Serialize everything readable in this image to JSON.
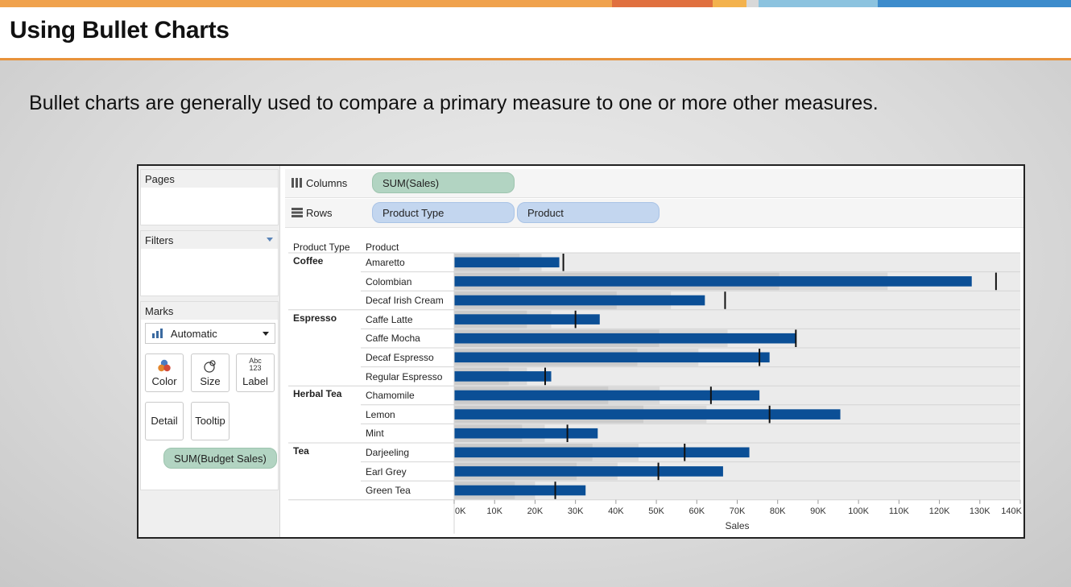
{
  "slide": {
    "title": "Using Bullet Charts",
    "subtitle": "Bullet charts are generally used to compare a primary measure to one or more other measures."
  },
  "colors": {
    "accent_orange": "#e8923a",
    "bar_blue": "#0b4f96",
    "pill_green": "#b2d4c2",
    "pill_blue": "#c3d6ef"
  },
  "left_pane": {
    "pages_label": "Pages",
    "filters_label": "Filters",
    "marks_label": "Marks",
    "mark_type": "Automatic",
    "buttons": {
      "color": "Color",
      "size": "Size",
      "label": "Label",
      "detail": "Detail",
      "tooltip": "Tooltip"
    },
    "label_icon_text": [
      "Abc",
      "123"
    ],
    "marks_pill": "SUM(Budget Sales)"
  },
  "shelves": {
    "columns_label": "Columns",
    "columns_pill": "SUM(Sales)",
    "rows_label": "Rows",
    "rows_pills": [
      "Product Type",
      "Product"
    ]
  },
  "chart_data": {
    "type": "bar",
    "subtype": "bullet",
    "header_product_type": "Product Type",
    "header_product": "Product",
    "xlabel": "Sales",
    "xlim": [
      0,
      140000
    ],
    "x_ticks": [
      0,
      10000,
      20000,
      30000,
      40000,
      50000,
      60000,
      70000,
      80000,
      90000,
      100000,
      110000,
      120000,
      130000,
      140000
    ],
    "x_tick_labels": [
      "0K",
      "10K",
      "20K",
      "30K",
      "40K",
      "50K",
      "60K",
      "70K",
      "80K",
      "90K",
      "100K",
      "110K",
      "120K",
      "130K",
      "140K"
    ],
    "groups": [
      {
        "name": "Coffee",
        "rows": [
          {
            "product": "Amaretto",
            "sales": 26000,
            "budget": 27000
          },
          {
            "product": "Colombian",
            "sales": 128000,
            "budget": 134000
          },
          {
            "product": "Decaf Irish Cream",
            "sales": 62000,
            "budget": 67000
          }
        ]
      },
      {
        "name": "Espresso",
        "rows": [
          {
            "product": "Caffe Latte",
            "sales": 36000,
            "budget": 30000
          },
          {
            "product": "Caffe Mocha",
            "sales": 84500,
            "budget": 84500
          },
          {
            "product": "Decaf Espresso",
            "sales": 78000,
            "budget": 75500
          },
          {
            "product": "Regular Espresso",
            "sales": 24000,
            "budget": 22500
          }
        ]
      },
      {
        "name": "Herbal Tea",
        "rows": [
          {
            "product": "Chamomile",
            "sales": 75500,
            "budget": 63500
          },
          {
            "product": "Lemon",
            "sales": 95500,
            "budget": 78000
          },
          {
            "product": "Mint",
            "sales": 35500,
            "budget": 28000
          }
        ]
      },
      {
        "name": "Tea",
        "rows": [
          {
            "product": "Darjeeling",
            "sales": 73000,
            "budget": 57000
          },
          {
            "product": "Earl Grey",
            "sales": 66500,
            "budget": 50500
          },
          {
            "product": "Green Tea",
            "sales": 32500,
            "budget": 25000
          }
        ]
      }
    ]
  }
}
